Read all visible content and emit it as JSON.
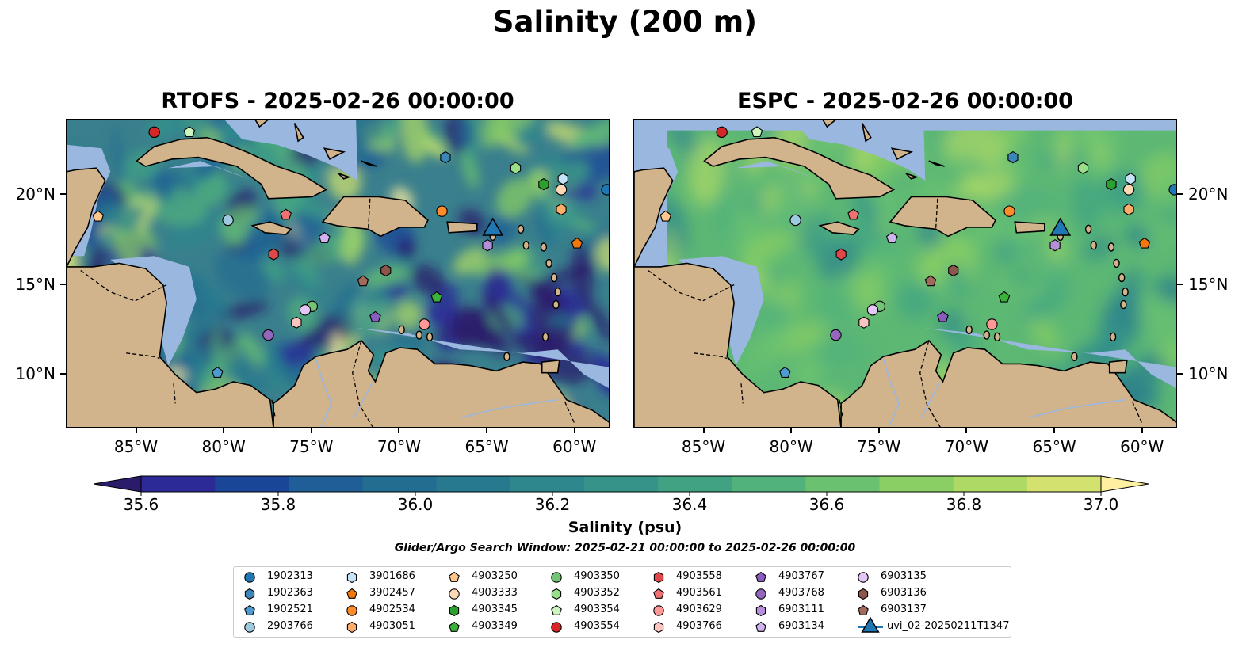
{
  "suptitle": "Salinity (200 m)",
  "panels": [
    {
      "title": "RTOFS - 2025-02-26 00:00:00",
      "ocean_base": "#3a7f8d"
    },
    {
      "title": "ESPC - 2025-02-26 00:00:00",
      "ocean_base": "#5db874"
    }
  ],
  "axes": {
    "x_ticks": [
      "85°W",
      "80°W",
      "75°W",
      "70°W",
      "65°W",
      "60°W"
    ],
    "y_ticks": [
      "20°N",
      "15°N",
      "10°N"
    ]
  },
  "colorbar": {
    "label": "Salinity (psu)",
    "ticks": [
      "35.6",
      "35.8",
      "36.0",
      "36.2",
      "36.4",
      "36.6",
      "36.8",
      "37.0"
    ],
    "colors": [
      "#2b1b6b",
      "#2b2a97",
      "#1a4698",
      "#1f5e96",
      "#226d90",
      "#26798f",
      "#2d878c",
      "#35938a",
      "#40a283",
      "#52b27c",
      "#6ac270",
      "#89cf64",
      "#afd965",
      "#d3e26f",
      "#fdf0a0"
    ]
  },
  "search_window": "Glider/Argo Search Window: 2025-02-21 00:00:00 to 2025-02-26 00:00:00",
  "legend": [
    {
      "label": "1902313",
      "marker": "circle",
      "color": "#1f77b4"
    },
    {
      "label": "1902363",
      "marker": "hexagon",
      "color": "#3a86b8"
    },
    {
      "label": "1902521",
      "marker": "pentagon",
      "color": "#4d9bd1"
    },
    {
      "label": "2903766",
      "marker": "circle",
      "color": "#9ecae1"
    },
    {
      "label": "3901686",
      "marker": "hexagon",
      "color": "#c6e3f7"
    },
    {
      "label": "3902457",
      "marker": "pentagon",
      "color": "#f0780f"
    },
    {
      "label": "4902534",
      "marker": "circle",
      "color": "#ff8c2a"
    },
    {
      "label": "4903051",
      "marker": "hexagon",
      "color": "#fdae6b"
    },
    {
      "label": "4903250",
      "marker": "pentagon",
      "color": "#fdc88a"
    },
    {
      "label": "4903333",
      "marker": "circle",
      "color": "#fdd9b5"
    },
    {
      "label": "4903345",
      "marker": "hexagon",
      "color": "#2ca02c"
    },
    {
      "label": "4903349",
      "marker": "pentagon",
      "color": "#3bb33b"
    },
    {
      "label": "4903350",
      "marker": "circle",
      "color": "#74c476"
    },
    {
      "label": "4903352",
      "marker": "hexagon",
      "color": "#98df8a"
    },
    {
      "label": "4903354",
      "marker": "pentagon",
      "color": "#cdf5c0"
    },
    {
      "label": "4903554",
      "marker": "circle",
      "color": "#d62728"
    },
    {
      "label": "4903558",
      "marker": "hexagon",
      "color": "#e0474b"
    },
    {
      "label": "4903561",
      "marker": "pentagon",
      "color": "#f07171"
    },
    {
      "label": "4903629",
      "marker": "circle",
      "color": "#ff9896"
    },
    {
      "label": "4903766",
      "marker": "hexagon",
      "color": "#fcc4c0"
    },
    {
      "label": "4903767",
      "marker": "pentagon",
      "color": "#8a5cbd"
    },
    {
      "label": "4903768",
      "marker": "circle",
      "color": "#9467bd"
    },
    {
      "label": "6903111",
      "marker": "hexagon",
      "color": "#b58fd9"
    },
    {
      "label": "6903134",
      "marker": "pentagon",
      "color": "#cfb3ef"
    },
    {
      "label": "6903135",
      "marker": "circle",
      "color": "#e3c7f7"
    },
    {
      "label": "6903136",
      "marker": "hexagon",
      "color": "#8c564b"
    },
    {
      "label": "6903137",
      "marker": "pentagon",
      "color": "#a26a5c"
    },
    {
      "label": "uvi_02-20250211T1347",
      "marker": "triangle",
      "color": "#1f77b4"
    }
  ],
  "floats": [
    {
      "id": "1902313",
      "lon": -58.2,
      "lat": 20.3
    },
    {
      "id": "1902363",
      "lon": -67.4,
      "lat": 22.1
    },
    {
      "id": "1902521",
      "lon": -80.4,
      "lat": 10.1
    },
    {
      "id": "2903766",
      "lon": -79.8,
      "lat": 18.6
    },
    {
      "id": "3901686",
      "lon": -60.7,
      "lat": 20.9
    },
    {
      "id": "3902457",
      "lon": -59.9,
      "lat": 17.3
    },
    {
      "id": "4902534",
      "lon": -67.6,
      "lat": 19.1
    },
    {
      "id": "4903051",
      "lon": -60.8,
      "lat": 19.2
    },
    {
      "id": "4903250",
      "lon": -87.2,
      "lat": 18.8
    },
    {
      "id": "4903333",
      "lon": -60.8,
      "lat": 20.3
    },
    {
      "id": "4903345",
      "lon": -61.8,
      "lat": 20.6
    },
    {
      "id": "4903349",
      "lon": -67.9,
      "lat": 14.3
    },
    {
      "id": "4903350",
      "lon": -75.0,
      "lat": 13.8
    },
    {
      "id": "4903352",
      "lon": -63.4,
      "lat": 21.5
    },
    {
      "id": "4903354",
      "lon": -82.0,
      "lat": 23.5
    },
    {
      "id": "4903554",
      "lon": -84.0,
      "lat": 23.5
    },
    {
      "id": "4903558",
      "lon": -77.2,
      "lat": 16.7
    },
    {
      "id": "4903561",
      "lon": -76.5,
      "lat": 18.9
    },
    {
      "id": "4903629",
      "lon": -68.6,
      "lat": 12.8
    },
    {
      "id": "4903766",
      "lon": -75.9,
      "lat": 12.9
    },
    {
      "id": "4903767",
      "lon": -71.4,
      "lat": 13.2
    },
    {
      "id": "4903768",
      "lon": -77.5,
      "lat": 12.2
    },
    {
      "id": "6903111",
      "lon": -65.0,
      "lat": 17.2
    },
    {
      "id": "6903134",
      "lon": -74.3,
      "lat": 17.6
    },
    {
      "id": "6903135",
      "lon": -75.4,
      "lat": 13.6
    },
    {
      "id": "6903136",
      "lon": -70.8,
      "lat": 15.8
    },
    {
      "id": "6903137",
      "lon": -72.1,
      "lat": 15.2
    },
    {
      "id": "uvi_02-20250211T1347",
      "lon": -64.7,
      "lat": 18.2
    }
  ]
}
